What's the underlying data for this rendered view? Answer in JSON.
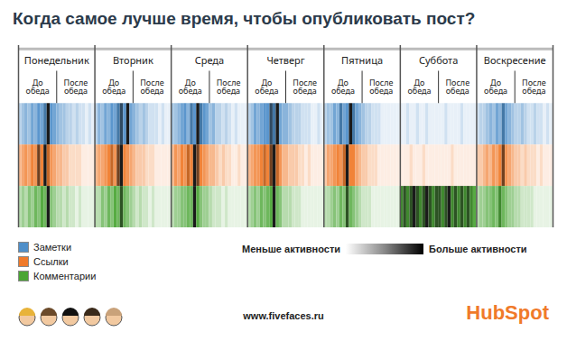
{
  "chart_data": {
    "type": "heatmap",
    "title": "Когда самое лучше время, чтобы опубликовать пост?",
    "categories": [
      "Понедельник",
      "Вторник",
      "Среда",
      "Четверг",
      "Пятница",
      "Суббота",
      "Воскресение"
    ],
    "periods": [
      "До обеда",
      "После обеда"
    ],
    "series": [
      {
        "name": "Заметки",
        "color": "#4f8fc9",
        "values": [
          [
            0.3,
            0.4,
            0.5,
            0.4,
            0.6,
            0.5,
            0.7,
            0.6,
            0.8,
            1.0,
            0.7,
            0.6,
            0.5,
            0.4,
            0.4,
            0.3,
            0.3,
            0.2,
            0.3,
            0.2,
            0.2,
            0.1,
            0.2,
            0.1
          ],
          [
            0.3,
            0.5,
            0.4,
            0.6,
            0.5,
            0.7,
            0.6,
            0.8,
            0.9,
            0.7,
            1.0,
            0.6,
            0.5,
            0.4,
            0.3,
            0.4,
            0.3,
            0.2,
            0.2,
            0.2,
            0.1,
            0.2,
            0.1,
            0.1
          ],
          [
            0.4,
            0.4,
            0.5,
            0.6,
            0.7,
            0.5,
            0.8,
            0.7,
            1.0,
            0.8,
            0.7,
            0.6,
            0.4,
            0.5,
            0.3,
            0.3,
            0.2,
            0.3,
            0.2,
            0.1,
            0.2,
            0.1,
            0.1,
            0.1
          ],
          [
            0.3,
            0.4,
            0.6,
            0.5,
            0.6,
            0.7,
            0.7,
            0.9,
            0.8,
            1.0,
            0.6,
            0.5,
            0.5,
            0.4,
            0.3,
            0.3,
            0.3,
            0.2,
            0.2,
            0.2,
            0.1,
            0.1,
            0.2,
            0.1
          ],
          [
            0.3,
            0.4,
            0.4,
            0.6,
            0.5,
            0.8,
            0.6,
            0.7,
            1.0,
            0.8,
            0.6,
            0.5,
            0.4,
            0.3,
            0.3,
            0.2,
            0.2,
            0.2,
            0.1,
            0.1,
            0.1,
            0.1,
            0.1,
            0.1
          ],
          [
            0.1,
            0.1,
            0.2,
            0.1,
            0.1,
            0.2,
            0.1,
            0.1,
            0.2,
            0.1,
            0.1,
            0.1,
            0.1,
            0.1,
            0.2,
            0.1,
            0.1,
            0.1,
            0.1,
            0.2,
            0.1,
            0.1,
            0.1,
            0.1
          ],
          [
            0.2,
            0.3,
            0.3,
            0.4,
            0.5,
            0.4,
            0.6,
            0.5,
            0.8,
            0.6,
            0.5,
            0.4,
            0.3,
            0.3,
            0.4,
            0.3,
            0.2,
            0.2,
            0.3,
            0.2,
            0.2,
            0.1,
            0.2,
            0.1
          ]
        ]
      },
      {
        "name": "Ссылки",
        "color": "#f07a2a",
        "values": [
          [
            0.4,
            0.5,
            0.6,
            0.5,
            0.7,
            0.6,
            0.9,
            0.7,
            1.0,
            0.8,
            0.6,
            0.5,
            0.4,
            0.4,
            0.3,
            0.3,
            0.2,
            0.2,
            0.2,
            0.2,
            0.1,
            0.1,
            0.1,
            0.1
          ],
          [
            0.4,
            0.5,
            0.5,
            0.6,
            0.7,
            0.8,
            0.6,
            0.9,
            1.0,
            0.7,
            0.6,
            0.5,
            0.4,
            0.3,
            0.3,
            0.3,
            0.2,
            0.2,
            0.2,
            0.1,
            0.1,
            0.1,
            0.1,
            0.1
          ],
          [
            0.4,
            0.6,
            0.5,
            0.7,
            0.6,
            0.8,
            0.7,
            1.0,
            0.9,
            0.7,
            0.6,
            0.5,
            0.4,
            0.4,
            0.3,
            0.2,
            0.3,
            0.2,
            0.2,
            0.1,
            0.1,
            0.2,
            0.1,
            0.1
          ],
          [
            0.4,
            0.5,
            0.6,
            0.6,
            0.7,
            0.8,
            0.7,
            0.9,
            1.0,
            0.8,
            0.6,
            0.4,
            0.4,
            0.3,
            0.3,
            0.3,
            0.2,
            0.2,
            0.1,
            0.2,
            0.1,
            0.1,
            0.1,
            0.1
          ],
          [
            0.3,
            0.5,
            0.5,
            0.6,
            0.7,
            0.6,
            0.8,
            1.0,
            0.7,
            0.7,
            0.5,
            0.4,
            0.3,
            0.3,
            0.2,
            0.2,
            0.2,
            0.1,
            0.1,
            0.1,
            0.1,
            0.1,
            0.1,
            0.1
          ],
          [
            0.1,
            0.1,
            0.1,
            0.2,
            0.1,
            0.1,
            0.1,
            0.2,
            0.1,
            0.1,
            0.1,
            0.1,
            0.1,
            0.1,
            0.1,
            0.1,
            0.2,
            0.1,
            0.1,
            0.1,
            0.1,
            0.1,
            0.1,
            0.1
          ],
          [
            0.3,
            0.3,
            0.4,
            0.5,
            0.4,
            0.6,
            0.5,
            0.7,
            0.9,
            0.6,
            0.5,
            0.4,
            0.3,
            0.3,
            0.2,
            0.3,
            0.2,
            0.2,
            0.2,
            0.1,
            0.2,
            0.1,
            0.1,
            0.1
          ]
        ]
      },
      {
        "name": "Комментарии",
        "color": "#4aa534",
        "values": [
          [
            0.3,
            0.4,
            0.3,
            0.5,
            0.4,
            0.6,
            0.5,
            0.7,
            0.6,
            1.0,
            0.5,
            0.4,
            0.3,
            0.3,
            0.2,
            0.3,
            0.2,
            0.2,
            0.1,
            0.2,
            0.1,
            0.1,
            0.1,
            0.1
          ],
          [
            0.3,
            0.3,
            0.5,
            0.4,
            0.6,
            0.5,
            0.7,
            0.6,
            0.9,
            0.6,
            0.5,
            0.4,
            0.3,
            0.2,
            0.3,
            0.2,
            0.2,
            0.1,
            0.2,
            0.1,
            0.1,
            0.1,
            0.1,
            0.1
          ],
          [
            0.3,
            0.4,
            0.4,
            0.5,
            0.5,
            0.6,
            0.6,
            1.0,
            0.7,
            0.5,
            0.4,
            0.4,
            0.3,
            0.2,
            0.2,
            0.2,
            0.1,
            0.2,
            0.1,
            0.1,
            0.1,
            0.1,
            0.1,
            0.1
          ],
          [
            0.3,
            0.4,
            0.5,
            0.4,
            0.6,
            0.5,
            0.6,
            0.7,
            1.0,
            0.6,
            0.5,
            0.3,
            0.3,
            0.3,
            0.2,
            0.2,
            0.2,
            0.1,
            0.1,
            0.1,
            0.1,
            0.1,
            0.1,
            0.1
          ],
          [
            0.3,
            0.3,
            0.4,
            0.5,
            0.4,
            0.6,
            0.5,
            0.9,
            0.6,
            0.5,
            0.4,
            0.3,
            0.2,
            0.2,
            0.2,
            0.1,
            0.1,
            0.1,
            0.1,
            0.1,
            0.1,
            0.1,
            0.1,
            0.1
          ],
          [
            0.8,
            0.9,
            0.8,
            0.9,
            1.0,
            0.9,
            0.8,
            0.9,
            1.0,
            0.9,
            0.8,
            0.9,
            0.9,
            0.8,
            0.9,
            1.0,
            0.8,
            0.9,
            0.8,
            0.9,
            0.8,
            0.9,
            0.8,
            0.7
          ],
          [
            0.3,
            0.4,
            0.4,
            0.5,
            0.5,
            0.6,
            0.5,
            0.8,
            0.6,
            0.5,
            0.4,
            0.4,
            0.3,
            0.3,
            0.2,
            0.2,
            0.2,
            0.2,
            0.1,
            0.1,
            0.1,
            0.1,
            0.1,
            0.1
          ]
        ]
      }
    ],
    "color_scale": {
      "range": [
        0,
        1
      ],
      "low_label": "Меньше активности",
      "high_label": "Больше активности"
    },
    "footer": {
      "website": "www.fivefaces.ru",
      "logo": "HubSpot"
    }
  }
}
